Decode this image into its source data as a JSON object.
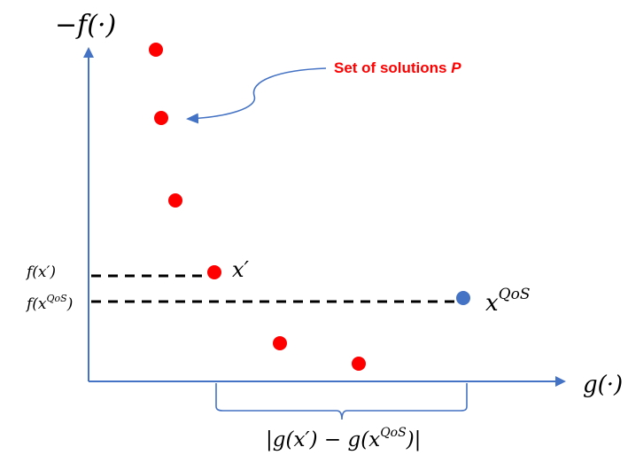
{
  "labels": {
    "y_axis": "−f(·)",
    "x_axis": "g(·)",
    "fx_prime": "f(x′)",
    "fx_qos_base": "f(x",
    "fx_qos_sup": "QoS",
    "fx_qos_close": ")",
    "x_prime": "x′",
    "x_qos_base": "x",
    "x_qos_sup": "QoS",
    "set_label": "Set of solutions ",
    "set_symbol": "P",
    "gap_part1": "|g(x′) − g(x",
    "gap_sup": "QoS",
    "gap_part2": ")|"
  },
  "colors": {
    "axis": "#4472c4",
    "solution_points": "#ff0000",
    "qos_point": "#4472c4",
    "dashed_lines": "#000000",
    "callout_text": "#ff0000",
    "callout_arrow": "#4472c4",
    "brace": "#4472c4"
  },
  "points": {
    "solution_set_count": 7,
    "highlighted_solution": "x′",
    "qos_solution": "x^QoS"
  }
}
